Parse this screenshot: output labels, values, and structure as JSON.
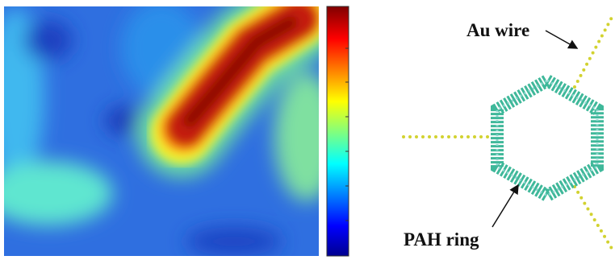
{
  "labels": {
    "wire": "Au wire",
    "ring": "PAH ring"
  }
}
